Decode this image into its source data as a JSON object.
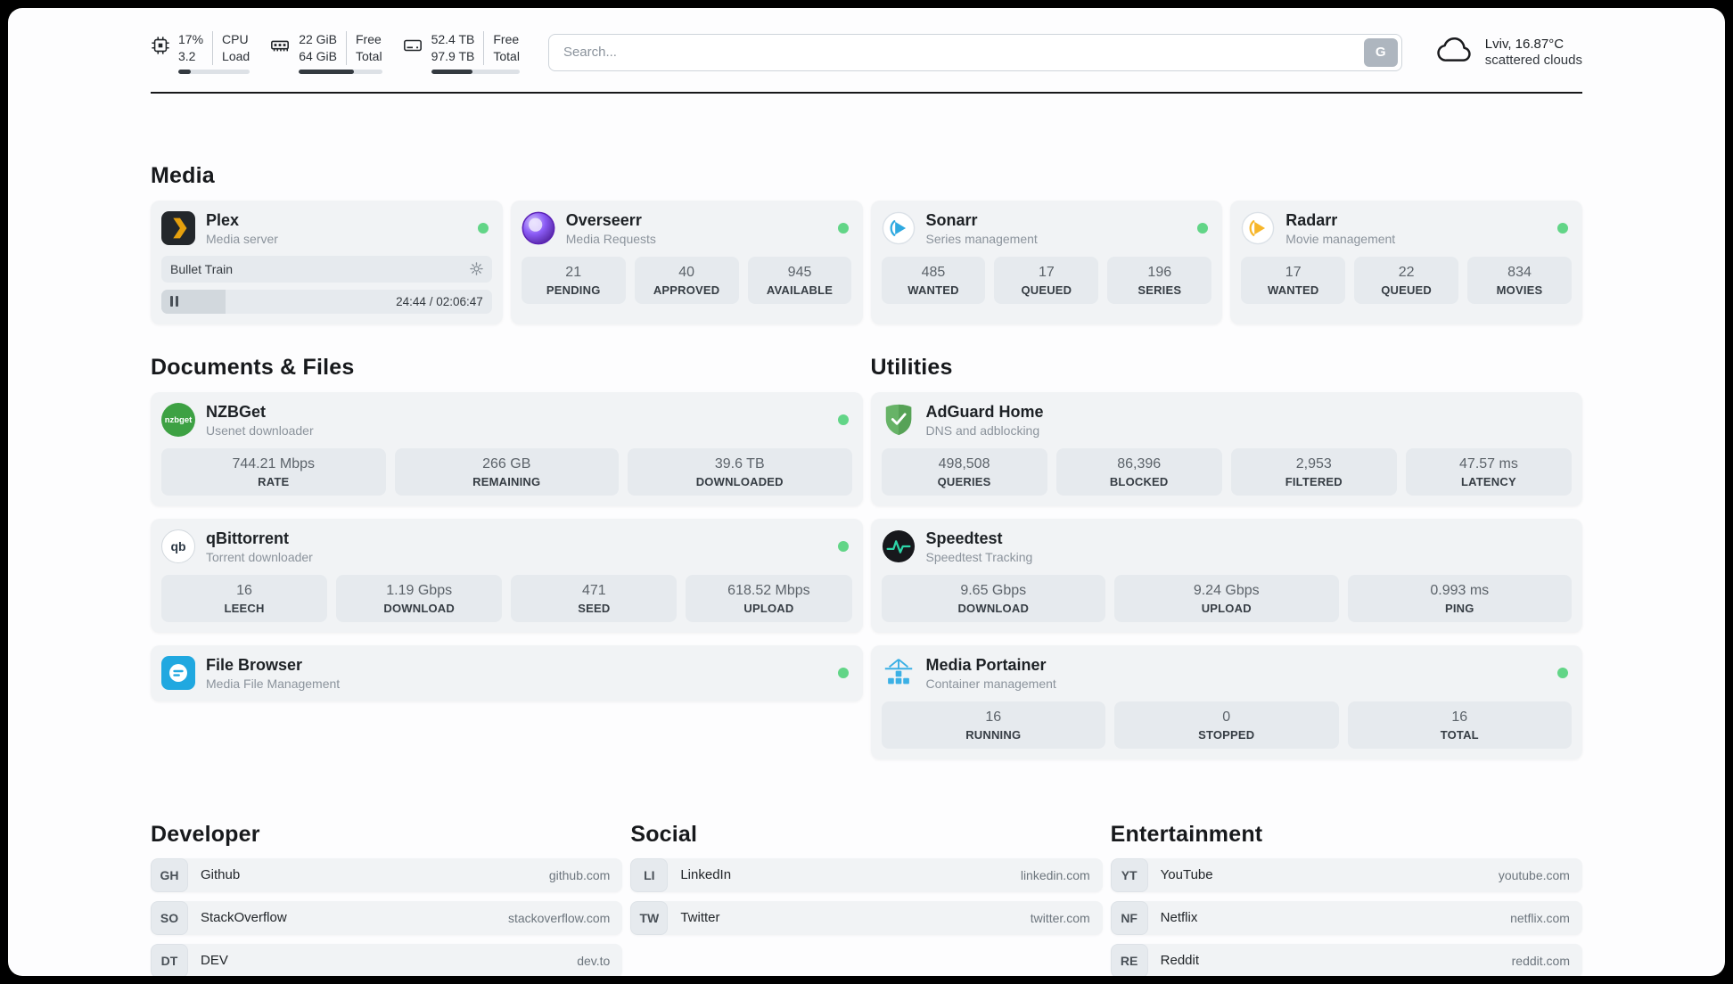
{
  "header": {
    "cpu": {
      "percent": "17%",
      "load": "3.2",
      "label_top": "CPU",
      "label_bottom": "Load",
      "progress": 17
    },
    "memory": {
      "free": "22 GiB",
      "total": "64 GiB",
      "label_top": "Free",
      "label_bottom": "Total",
      "progress": 66
    },
    "disk": {
      "free": "52.4 TB",
      "total": "97.9 TB",
      "label_top": "Free",
      "label_bottom": "Total",
      "progress": 47
    },
    "search": {
      "placeholder": "Search...",
      "button_label": "G"
    },
    "weather": {
      "location": "Lviv, 16.87°C",
      "condition": "scattered clouds"
    }
  },
  "media": {
    "heading": "Media",
    "plex": {
      "name": "Plex",
      "subtitle": "Media server",
      "now_playing": "Bullet Train",
      "time": "24:44 / 02:06:47",
      "progress": 19.5
    },
    "overseerr": {
      "name": "Overseerr",
      "subtitle": "Media Requests",
      "stats": [
        {
          "value": "21",
          "label": "PENDING"
        },
        {
          "value": "40",
          "label": "APPROVED"
        },
        {
          "value": "945",
          "label": "AVAILABLE"
        }
      ]
    },
    "sonarr": {
      "name": "Sonarr",
      "subtitle": "Series management",
      "stats": [
        {
          "value": "485",
          "label": "WANTED"
        },
        {
          "value": "17",
          "label": "QUEUED"
        },
        {
          "value": "196",
          "label": "SERIES"
        }
      ]
    },
    "radarr": {
      "name": "Radarr",
      "subtitle": "Movie management",
      "stats": [
        {
          "value": "17",
          "label": "WANTED"
        },
        {
          "value": "22",
          "label": "QUEUED"
        },
        {
          "value": "834",
          "label": "MOVIES"
        }
      ]
    }
  },
  "documents": {
    "heading": "Documents & Files",
    "nzbget": {
      "name": "NZBGet",
      "subtitle": "Usenet downloader",
      "icon_text": "nzbget",
      "stats": [
        {
          "value": "744.21 Mbps",
          "label": "RATE"
        },
        {
          "value": "266 GB",
          "label": "REMAINING"
        },
        {
          "value": "39.6 TB",
          "label": "DOWNLOADED"
        }
      ]
    },
    "qbittorrent": {
      "name": "qBittorrent",
      "subtitle": "Torrent downloader",
      "icon_text": "qb",
      "stats": [
        {
          "value": "16",
          "label": "LEECH"
        },
        {
          "value": "1.19 Gbps",
          "label": "DOWNLOAD"
        },
        {
          "value": "471",
          "label": "SEED"
        },
        {
          "value": "618.52 Mbps",
          "label": "UPLOAD"
        }
      ]
    },
    "filebrowser": {
      "name": "File Browser",
      "subtitle": "Media File Management"
    }
  },
  "utilities": {
    "heading": "Utilities",
    "adguard": {
      "name": "AdGuard Home",
      "subtitle": "DNS and adblocking",
      "stats": [
        {
          "value": "498,508",
          "label": "QUERIES"
        },
        {
          "value": "86,396",
          "label": "BLOCKED"
        },
        {
          "value": "2,953",
          "label": "FILTERED"
        },
        {
          "value": "47.57 ms",
          "label": "LATENCY"
        }
      ]
    },
    "speedtest": {
      "name": "Speedtest",
      "subtitle": "Speedtest Tracking",
      "stats": [
        {
          "value": "9.65 Gbps",
          "label": "DOWNLOAD"
        },
        {
          "value": "9.24 Gbps",
          "label": "UPLOAD"
        },
        {
          "value": "0.993 ms",
          "label": "PING"
        }
      ]
    },
    "portainer": {
      "name": "Media Portainer",
      "subtitle": "Container management",
      "stats": [
        {
          "value": "16",
          "label": "RUNNING"
        },
        {
          "value": "0",
          "label": "STOPPED"
        },
        {
          "value": "16",
          "label": "TOTAL"
        }
      ]
    }
  },
  "bookmarks": {
    "developer": {
      "heading": "Developer",
      "items": [
        {
          "abbr": "GH",
          "name": "Github",
          "url": "github.com"
        },
        {
          "abbr": "SO",
          "name": "StackOverflow",
          "url": "stackoverflow.com"
        },
        {
          "abbr": "DT",
          "name": "DEV",
          "url": "dev.to"
        }
      ]
    },
    "social": {
      "heading": "Social",
      "items": [
        {
          "abbr": "LI",
          "name": "LinkedIn",
          "url": "linkedin.com"
        },
        {
          "abbr": "TW",
          "name": "Twitter",
          "url": "twitter.com"
        }
      ]
    },
    "entertainment": {
      "heading": "Entertainment",
      "items": [
        {
          "abbr": "YT",
          "name": "YouTube",
          "url": "youtube.com"
        },
        {
          "abbr": "NF",
          "name": "Netflix",
          "url": "netflix.com"
        },
        {
          "abbr": "RE",
          "name": "Reddit",
          "url": "reddit.com"
        }
      ]
    }
  },
  "icons": {
    "cpu": "chip-icon",
    "memory": "ram-icon",
    "disk": "hdd-icon",
    "weather": "cloud-icon",
    "now_playing_settings": "gear-icon",
    "player": "pause-icon",
    "status": "green-dot"
  },
  "colors": {
    "status_online": "#62d587",
    "plex_accent": "#e5a00d",
    "sonarr_blue": "#2fa9e0",
    "radarr_yellow": "#f7b62a",
    "nzbget_green": "#3da143",
    "filebrowser_blue": "#20a8e0",
    "adguard_green": "#67b367",
    "speedtest_green": "#2dd4a8",
    "portainer_blue": "#3bb0e5"
  }
}
